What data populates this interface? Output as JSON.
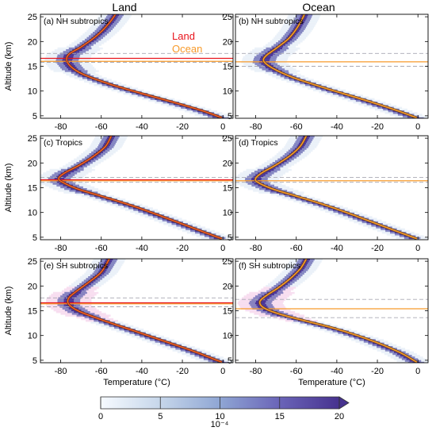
{
  "columns": [
    "Land",
    "Ocean"
  ],
  "legend": {
    "land": "Land",
    "ocean": "Ocean"
  },
  "colors": {
    "land": "#e8141c",
    "ocean": "#f79a2a",
    "outline": "#6b4422",
    "density_low": "#f4f8ff",
    "density_high": "#4b3496",
    "pink": "#f3c7e6"
  },
  "y_label": "Altitude (km)",
  "x_label": "Temperature (°C)",
  "x_ticks": [
    "-80",
    "-60",
    "-40",
    "-20",
    "0"
  ],
  "y_ticks": [
    "25",
    "20",
    "15",
    "10",
    "5"
  ],
  "colorbar": {
    "ticks": [
      "0",
      "5",
      "10",
      "15",
      "20"
    ],
    "unit": "10⁻⁴",
    "min": 0,
    "max": 20
  },
  "chart_data": [
    {
      "id": "a",
      "label": "(a) NH subtropics",
      "col": "Land",
      "type": "heatmap",
      "xlim": [
        -90,
        5
      ],
      "ylim": [
        4.5,
        25.5
      ],
      "tropopause_land": 16.6,
      "tropopause_ocean": 16.0,
      "dash_upper": 17.6,
      "dash_lower": 15.8,
      "profile": [
        [
          -0.5,
          4.6
        ],
        [
          -10,
          6.0
        ],
        [
          -25,
          7.8
        ],
        [
          -40,
          9.5
        ],
        [
          -55,
          11.3
        ],
        [
          -68,
          13.2
        ],
        [
          -74,
          14.6
        ],
        [
          -77,
          16.1
        ],
        [
          -76,
          17.4
        ],
        [
          -70,
          18.9
        ],
        [
          -64,
          20.6
        ],
        [
          -59,
          22.4
        ],
        [
          -55,
          24.3
        ],
        [
          -53,
          25.5
        ]
      ]
    },
    {
      "id": "b",
      "label": "(b) NH subtropics",
      "col": "Ocean",
      "type": "heatmap",
      "xlim": [
        -90,
        5
      ],
      "ylim": [
        4.5,
        25.5
      ],
      "tropopause_land": null,
      "tropopause_ocean": 15.9,
      "dash_upper": 17.6,
      "dash_lower": 15.0,
      "profile": [
        [
          -0.5,
          4.6
        ],
        [
          -12,
          6.3
        ],
        [
          -28,
          8.4
        ],
        [
          -45,
          10.5
        ],
        [
          -62,
          12.8
        ],
        [
          -72,
          14.7
        ],
        [
          -76,
          16.0
        ],
        [
          -75,
          17.1
        ],
        [
          -70,
          18.6
        ],
        [
          -64,
          20.5
        ],
        [
          -60,
          22.5
        ],
        [
          -57,
          24.6
        ],
        [
          -56,
          25.5
        ]
      ]
    },
    {
      "id": "c",
      "label": "(c) Tropics",
      "col": "Land",
      "type": "heatmap",
      "xlim": [
        -90,
        5
      ],
      "ylim": [
        4.5,
        25.5
      ],
      "tropopause_land": 16.6,
      "tropopause_ocean": 16.4,
      "dash_upper": 17.1,
      "dash_lower": 16.1,
      "profile": [
        [
          -0.5,
          4.7
        ],
        [
          -15,
          6.9
        ],
        [
          -30,
          9.2
        ],
        [
          -45,
          11.4
        ],
        [
          -60,
          13.3
        ],
        [
          -72,
          14.8
        ],
        [
          -79,
          16.1
        ],
        [
          -81,
          16.9
        ],
        [
          -78,
          18.0
        ],
        [
          -71,
          19.5
        ],
        [
          -64,
          21.3
        ],
        [
          -58,
          23.3
        ],
        [
          -55,
          25.5
        ]
      ]
    },
    {
      "id": "d",
      "label": "(d) Tropics",
      "col": "Ocean",
      "type": "heatmap",
      "xlim": [
        -90,
        5
      ],
      "ylim": [
        4.5,
        25.5
      ],
      "tropopause_land": null,
      "tropopause_ocean": 16.4,
      "dash_upper": 17.1,
      "dash_lower": 16.1,
      "profile": [
        [
          -0.5,
          4.7
        ],
        [
          -15,
          6.9
        ],
        [
          -30,
          9.2
        ],
        [
          -45,
          11.4
        ],
        [
          -60,
          13.3
        ],
        [
          -72,
          14.8
        ],
        [
          -79,
          16.1
        ],
        [
          -80,
          16.9
        ],
        [
          -77,
          18.0
        ],
        [
          -70,
          19.6
        ],
        [
          -63,
          21.5
        ],
        [
          -58,
          23.4
        ],
        [
          -55,
          25.5
        ]
      ]
    },
    {
      "id": "e",
      "label": "(e) SH subtropics",
      "col": "Land",
      "type": "heatmap",
      "xlim": [
        -90,
        5
      ],
      "ylim": [
        4.5,
        25.5
      ],
      "tropopause_land": 16.6,
      "tropopause_ocean": 16.4,
      "dash_upper": 17.6,
      "dash_lower": 15.8,
      "profile": [
        [
          -0.5,
          4.6
        ],
        [
          -15,
          6.9
        ],
        [
          -30,
          9.0
        ],
        [
          -45,
          11.1
        ],
        [
          -60,
          13.2
        ],
        [
          -71,
          14.9
        ],
        [
          -76,
          16.3
        ],
        [
          -76,
          17.6
        ],
        [
          -72,
          19.0
        ],
        [
          -66,
          20.8
        ],
        [
          -60,
          22.8
        ],
        [
          -56,
          25.5
        ]
      ]
    },
    {
      "id": "f",
      "label": "(f) SH subtropics",
      "col": "Ocean",
      "type": "heatmap",
      "xlim": [
        -90,
        5
      ],
      "ylim": [
        4.5,
        25.5
      ],
      "tropopause_land": null,
      "tropopause_ocean": 15.4,
      "dash_upper": 17.3,
      "dash_lower": 13.6,
      "profile": [
        [
          -0.5,
          4.6
        ],
        [
          -10,
          6.8
        ],
        [
          -25,
          9.3
        ],
        [
          -40,
          11.3
        ],
        [
          -55,
          12.9
        ],
        [
          -68,
          14.3
        ],
        [
          -76,
          15.6
        ],
        [
          -78,
          16.8
        ],
        [
          -75,
          18.0
        ],
        [
          -69,
          19.6
        ],
        [
          -63,
          21.5
        ],
        [
          -58,
          23.5
        ],
        [
          -55,
          25.5
        ]
      ]
    }
  ]
}
